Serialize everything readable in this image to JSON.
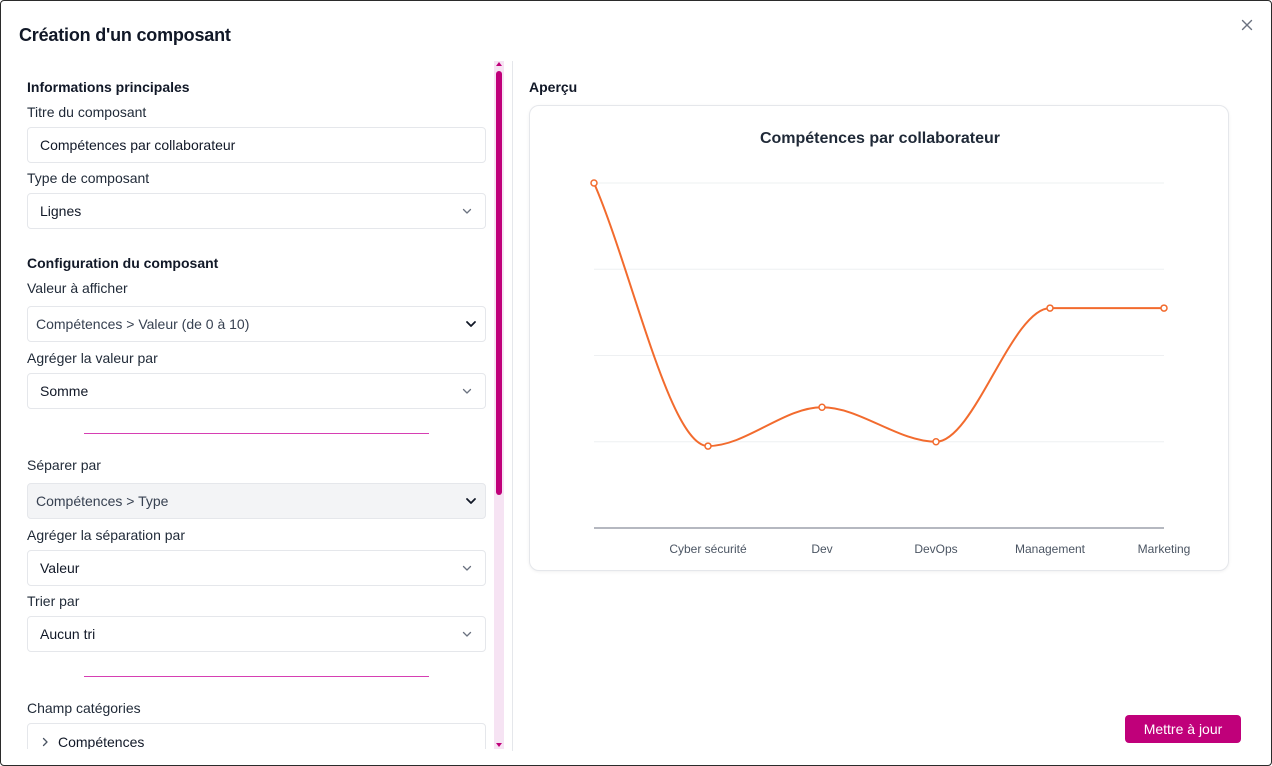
{
  "dialog": {
    "title": "Création d'un composant"
  },
  "form": {
    "section_main": "Informations principales",
    "title_label": "Titre du composant",
    "title_value": "Compétences par collaborateur",
    "type_label": "Type de composant",
    "type_value": "Lignes",
    "section_config": "Configuration du composant",
    "value_label": "Valeur à afficher",
    "value_value": "Compétences > Valeur (de 0 à 10)",
    "aggregate_label": "Agréger la valeur par",
    "aggregate_value": "Somme",
    "split_label": "Séparer par",
    "split_value": "Compétences > Type",
    "split_agg_label": "Agréger la séparation par",
    "split_agg_value": "Valeur",
    "sort_label": "Trier par",
    "sort_value": "Aucun tri",
    "categories_label": "Champ catégories",
    "categories_value": "Compétences"
  },
  "preview": {
    "label": "Aperçu"
  },
  "actions": {
    "update_label": "Mettre à jour"
  },
  "colors": {
    "accent": "#c0007a",
    "line": "#f26b2e"
  },
  "chart_data": {
    "type": "line",
    "title": "Compétences par collaborateur",
    "categories": [
      "",
      "Cyber sécurité",
      "Dev",
      "DevOps",
      "Management",
      "Marketing"
    ],
    "series": [
      {
        "values": [
          4.0,
          0.95,
          1.4,
          1.0,
          2.55,
          2.55
        ]
      }
    ],
    "ylim": [
      0,
      4
    ],
    "grid": true,
    "smooth": true,
    "xlabel": "",
    "ylabel": ""
  }
}
